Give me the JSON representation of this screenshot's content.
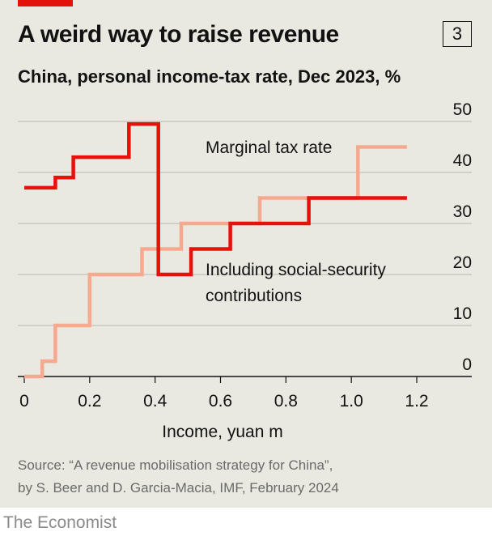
{
  "header": {
    "title": "A weird way to raise revenue",
    "chart_number": "3",
    "subtitle": "China, personal income-tax rate, Dec 2023, %"
  },
  "footer": {
    "source_line1": "Source: “A revenue mobilisation strategy for China”,",
    "source_line2": "by S. Beer and D. Garcia-Macia, IMF, February 2024",
    "brand": "The Economist"
  },
  "colors": {
    "background": "#e9e9e1",
    "accent": "#e3120b",
    "marginal": "#e3120b",
    "including_ss": "#f6a98f",
    "grid": "#b7b7b0",
    "text": "#121212"
  },
  "chart_data": {
    "type": "line",
    "step": true,
    "xlabel": "Income, yuan m",
    "ylabel": "",
    "xlim": [
      0,
      1.2
    ],
    "ylim": [
      0,
      50
    ],
    "x_ticks": [
      "0",
      "0.2",
      "0.4",
      "0.6",
      "0.8",
      "1.0",
      "1.2"
    ],
    "y_ticks": [
      "0",
      "10",
      "20",
      "30",
      "40",
      "50"
    ],
    "y_axis_side": "right",
    "grid": true,
    "series": [
      {
        "name": "Marginal tax rate",
        "color": "#e3120b",
        "x": [
          0,
          0.095,
          0.095,
          0.15,
          0.15,
          0.32,
          0.32,
          0.41,
          0.41,
          0.51,
          0.51,
          0.63,
          0.63,
          0.87,
          0.87,
          1.17
        ],
        "y": [
          37,
          37,
          39,
          39,
          43,
          43,
          49.5,
          49.5,
          20,
          20,
          25,
          25,
          30,
          30,
          35,
          35
        ]
      },
      {
        "name": "Including social-security contributions",
        "color": "#f6a98f",
        "x": [
          0,
          0.055,
          0.055,
          0.095,
          0.095,
          0.2,
          0.2,
          0.36,
          0.36,
          0.48,
          0.48,
          0.72,
          0.72,
          1.02,
          1.02,
          1.17
        ],
        "y": [
          0,
          0,
          3,
          3,
          10,
          10,
          20,
          20,
          25,
          25,
          30,
          30,
          35,
          35,
          45,
          45
        ]
      }
    ]
  }
}
